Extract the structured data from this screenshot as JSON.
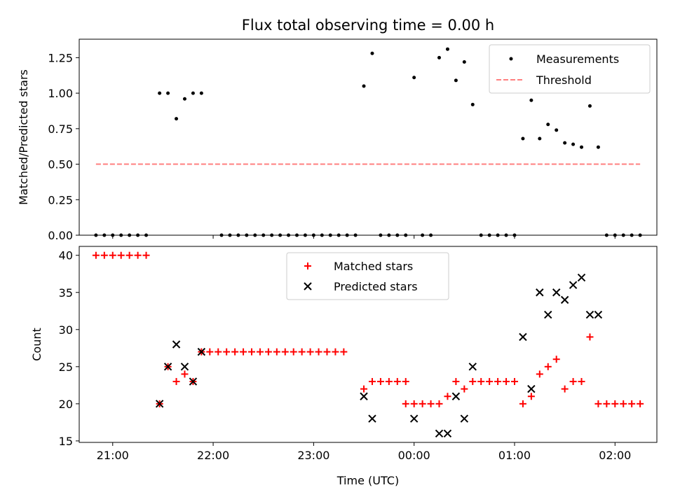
{
  "chart_data": [
    {
      "type": "scatter",
      "title": "Flux total observing time = 0.00 h",
      "xlabel": "",
      "ylabel": "Matched/Predicted stars",
      "ylim": [
        0,
        1.38
      ],
      "xlim": [
        "20:40",
        "02:25"
      ],
      "yticks": [
        0.0,
        0.25,
        0.5,
        0.75,
        1.0,
        1.25
      ],
      "ytick_labels": [
        "0.00",
        "0.25",
        "0.50",
        "0.75",
        "1.00",
        "1.25"
      ],
      "grid": false,
      "legend_position": "top-right",
      "series": [
        {
          "name": "Measurements",
          "kind": "scatter",
          "marker": "dot",
          "color": "#000000",
          "points": [
            [
              "20:50",
              0.0
            ],
            [
              "20:55",
              0.0
            ],
            [
              "21:00",
              0.0
            ],
            [
              "21:05",
              0.0
            ],
            [
              "21:10",
              0.0
            ],
            [
              "21:15",
              0.0
            ],
            [
              "21:20",
              0.0
            ],
            [
              "21:28",
              1.0
            ],
            [
              "21:33",
              1.0
            ],
            [
              "21:38",
              0.82
            ],
            [
              "21:43",
              0.96
            ],
            [
              "21:48",
              1.0
            ],
            [
              "21:53",
              1.0
            ],
            [
              "22:05",
              0.0
            ],
            [
              "22:10",
              0.0
            ],
            [
              "22:15",
              0.0
            ],
            [
              "22:20",
              0.0
            ],
            [
              "22:25",
              0.0
            ],
            [
              "22:30",
              0.0
            ],
            [
              "22:35",
              0.0
            ],
            [
              "22:40",
              0.0
            ],
            [
              "22:45",
              0.0
            ],
            [
              "22:50",
              0.0
            ],
            [
              "22:55",
              0.0
            ],
            [
              "23:00",
              0.0
            ],
            [
              "23:05",
              0.0
            ],
            [
              "23:10",
              0.0
            ],
            [
              "23:15",
              0.0
            ],
            [
              "23:20",
              0.0
            ],
            [
              "23:25",
              0.0
            ],
            [
              "23:30",
              1.05
            ],
            [
              "23:35",
              1.28
            ],
            [
              "23:40",
              0.0
            ],
            [
              "23:45",
              0.0
            ],
            [
              "23:50",
              0.0
            ],
            [
              "23:55",
              0.0
            ],
            [
              "00:00",
              1.11
            ],
            [
              "00:05",
              0.0
            ],
            [
              "00:10",
              0.0
            ],
            [
              "00:15",
              1.25
            ],
            [
              "00:20",
              1.31
            ],
            [
              "00:25",
              1.09
            ],
            [
              "00:30",
              1.22
            ],
            [
              "00:35",
              0.92
            ],
            [
              "00:40",
              0.0
            ],
            [
              "00:45",
              0.0
            ],
            [
              "00:50",
              0.0
            ],
            [
              "00:55",
              0.0
            ],
            [
              "01:00",
              0.0
            ],
            [
              "01:05",
              0.68
            ],
            [
              "01:10",
              0.95
            ],
            [
              "01:15",
              0.68
            ],
            [
              "01:20",
              0.78
            ],
            [
              "01:25",
              0.74
            ],
            [
              "01:30",
              0.65
            ],
            [
              "01:35",
              0.64
            ],
            [
              "01:40",
              0.62
            ],
            [
              "01:45",
              0.91
            ],
            [
              "01:50",
              0.62
            ],
            [
              "01:55",
              0.0
            ],
            [
              "02:00",
              0.0
            ],
            [
              "02:05",
              0.0
            ],
            [
              "02:10",
              0.0
            ],
            [
              "02:15",
              0.0
            ]
          ]
        },
        {
          "name": "Threshold",
          "kind": "line",
          "style": "dashed",
          "color": "#ff7f7f",
          "points": [
            [
              "20:50",
              0.5
            ],
            [
              "02:15",
              0.5
            ]
          ]
        }
      ]
    },
    {
      "type": "scatter",
      "title": "",
      "xlabel": "Time (UTC)",
      "ylabel": "Count",
      "ylim": [
        14.8,
        41.2
      ],
      "xlim": [
        "20:40",
        "02:25"
      ],
      "yticks": [
        15,
        20,
        25,
        30,
        35,
        40
      ],
      "ytick_labels": [
        "15",
        "20",
        "25",
        "30",
        "35",
        "40"
      ],
      "xticks": [
        "21:00",
        "22:00",
        "23:00",
        "00:00",
        "01:00",
        "02:00"
      ],
      "xtick_labels": [
        "21:00",
        "22:00",
        "23:00",
        "00:00",
        "01:00",
        "02:00"
      ],
      "grid": false,
      "legend_position": "upper-center",
      "series": [
        {
          "name": "Matched stars",
          "kind": "scatter",
          "marker": "plus",
          "color": "#ff0000",
          "points": [
            [
              "20:50",
              40
            ],
            [
              "20:55",
              40
            ],
            [
              "21:00",
              40
            ],
            [
              "21:05",
              40
            ],
            [
              "21:10",
              40
            ],
            [
              "21:15",
              40
            ],
            [
              "21:20",
              40
            ],
            [
              "21:28",
              20
            ],
            [
              "21:33",
              25
            ],
            [
              "21:38",
              23
            ],
            [
              "21:43",
              24
            ],
            [
              "21:48",
              23
            ],
            [
              "21:53",
              27
            ],
            [
              "21:58",
              27
            ],
            [
              "22:03",
              27
            ],
            [
              "22:08",
              27
            ],
            [
              "22:13",
              27
            ],
            [
              "22:18",
              27
            ],
            [
              "22:23",
              27
            ],
            [
              "22:28",
              27
            ],
            [
              "22:33",
              27
            ],
            [
              "22:38",
              27
            ],
            [
              "22:43",
              27
            ],
            [
              "22:48",
              27
            ],
            [
              "22:53",
              27
            ],
            [
              "22:58",
              27
            ],
            [
              "23:03",
              27
            ],
            [
              "23:08",
              27
            ],
            [
              "23:13",
              27
            ],
            [
              "23:18",
              27
            ],
            [
              "23:30",
              22
            ],
            [
              "23:35",
              23
            ],
            [
              "23:40",
              23
            ],
            [
              "23:45",
              23
            ],
            [
              "23:50",
              23
            ],
            [
              "23:55",
              23
            ],
            [
              "23:55",
              20
            ],
            [
              "00:00",
              20
            ],
            [
              "00:05",
              20
            ],
            [
              "00:10",
              20
            ],
            [
              "00:15",
              20
            ],
            [
              "00:20",
              21
            ],
            [
              "00:25",
              23
            ],
            [
              "00:30",
              22
            ],
            [
              "00:35",
              23
            ],
            [
              "00:40",
              23
            ],
            [
              "00:45",
              23
            ],
            [
              "00:50",
              23
            ],
            [
              "00:55",
              23
            ],
            [
              "01:00",
              23
            ],
            [
              "01:05",
              20
            ],
            [
              "01:10",
              21
            ],
            [
              "01:15",
              24
            ],
            [
              "01:20",
              25
            ],
            [
              "01:25",
              26
            ],
            [
              "01:30",
              22
            ],
            [
              "01:35",
              23
            ],
            [
              "01:40",
              23
            ],
            [
              "01:45",
              29
            ],
            [
              "01:50",
              20
            ],
            [
              "01:55",
              20
            ],
            [
              "02:00",
              20
            ],
            [
              "02:05",
              20
            ],
            [
              "02:10",
              20
            ],
            [
              "02:15",
              20
            ]
          ]
        },
        {
          "name": "Predicted stars",
          "kind": "scatter",
          "marker": "x",
          "color": "#000000",
          "points": [
            [
              "21:28",
              20
            ],
            [
              "21:33",
              25
            ],
            [
              "21:38",
              28
            ],
            [
              "21:43",
              25
            ],
            [
              "21:48",
              23
            ],
            [
              "21:53",
              27
            ],
            [
              "23:30",
              21
            ],
            [
              "23:35",
              18
            ],
            [
              "00:00",
              18
            ],
            [
              "00:15",
              16
            ],
            [
              "00:20",
              16
            ],
            [
              "00:25",
              21
            ],
            [
              "00:30",
              18
            ],
            [
              "00:35",
              25
            ],
            [
              "01:05",
              29
            ],
            [
              "01:10",
              22
            ],
            [
              "01:15",
              35
            ],
            [
              "01:20",
              32
            ],
            [
              "01:25",
              35
            ],
            [
              "01:30",
              34
            ],
            [
              "01:35",
              36
            ],
            [
              "01:40",
              37
            ],
            [
              "01:45",
              32
            ],
            [
              "01:50",
              32
            ]
          ]
        }
      ]
    }
  ]
}
